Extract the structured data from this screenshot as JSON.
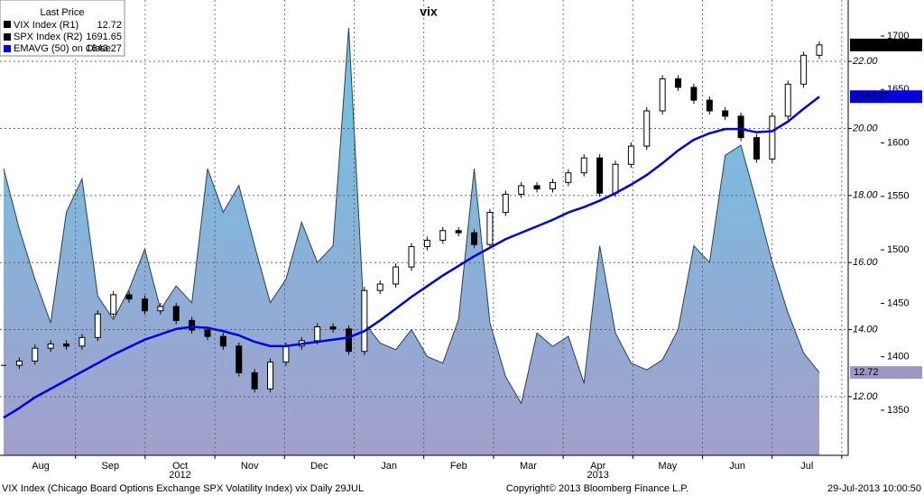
{
  "chart_data": {
    "type": "bloomberg-combo",
    "title": "vix",
    "legend_title": "Last Price",
    "series": [
      {
        "name": "VIX Index  (R1)",
        "color": "#7ec8e3",
        "axis": "y",
        "values": [
          18.8,
          17,
          15.5,
          14.2,
          17.5,
          18.5,
          15,
          14.3,
          15.2,
          16.4,
          14.6,
          15.3,
          14.8,
          18.8,
          17.5,
          18.3,
          16.5,
          14.8,
          15.5,
          17.2,
          16,
          16.5,
          23,
          14.2,
          13.6,
          13.4,
          14,
          13.2,
          13,
          14.3,
          18.8,
          14.2,
          12.6,
          11.8,
          13.9,
          13.5,
          13.8,
          12.4,
          16.5,
          13.9,
          13,
          12.8,
          13.1,
          14,
          16.5,
          16,
          19.2,
          19.5,
          17.8,
          16,
          14.5,
          13.3,
          12.72
        ]
      },
      {
        "name": "SPX Index  (R2)",
        "color": "#000000",
        "axis": "y2",
        "values": [
          1392,
          1396,
          1408,
          1412,
          1410,
          1418,
          1440,
          1458,
          1454,
          1443,
          1447,
          1434,
          1425,
          1419,
          1410,
          1385,
          1370,
          1395,
          1410,
          1415,
          1428,
          1426,
          1405,
          1462,
          1468,
          1484,
          1503,
          1509,
          1518,
          1516,
          1505,
          1535,
          1552,
          1560,
          1557,
          1563,
          1572,
          1586,
          1553,
          1580,
          1597,
          1630,
          1660,
          1652,
          1640,
          1630,
          1625,
          1605,
          1585,
          1625,
          1655,
          1682,
          1691.65
        ]
      },
      {
        "name": "EMAVG (50) on Close",
        "color": "#0000e0",
        "axis": "y2",
        "values": [
          1343,
          1352,
          1362,
          1370,
          1378,
          1386,
          1394,
          1402,
          1409,
          1416,
          1421,
          1426,
          1428,
          1427,
          1424,
          1420,
          1414,
          1410,
          1410,
          1412,
          1414,
          1416,
          1418,
          1424,
          1434,
          1445,
          1456,
          1466,
          1476,
          1485,
          1494,
          1502,
          1510,
          1516,
          1522,
          1528,
          1535,
          1540,
          1546,
          1553,
          1561,
          1570,
          1581,
          1593,
          1603,
          1609,
          1613,
          1613,
          1610,
          1611,
          1620,
          1632,
          1643.27
        ]
      }
    ],
    "ylim": [
      10.25,
      23.83
    ],
    "yticks": [
      {
        "value": 12,
        "label": "12.00"
      },
      {
        "value": 14,
        "label": "14.00"
      },
      {
        "value": 16,
        "label": "16.00"
      },
      {
        "value": 18,
        "label": "18.00"
      },
      {
        "value": 20,
        "label": "20.00"
      },
      {
        "value": 22,
        "label": "22.00"
      }
    ],
    "y2lim": [
      1307.8,
      1733.7
    ],
    "y2ticks": [
      1350,
      1400,
      1450,
      1500,
      1550,
      1600,
      1650,
      1700
    ],
    "months": [
      "Aug",
      "Sep",
      "Oct",
      "Nov",
      "Dec",
      "Jan",
      "Feb",
      "Mar",
      "Apr",
      "May",
      "Jun",
      "Jul"
    ],
    "years": [
      "2012",
      "2013"
    ],
    "grid": true,
    "legend": "top-left",
    "footer": {
      "left": "VIX Index (Chicago Board Options Exchange SPX Volatility Index) vix  Daily 29JUL",
      "center": "Copyright© 2013 Bloomberg Finance L.P.",
      "right": "29-Jul-2013 10:00:50"
    }
  }
}
